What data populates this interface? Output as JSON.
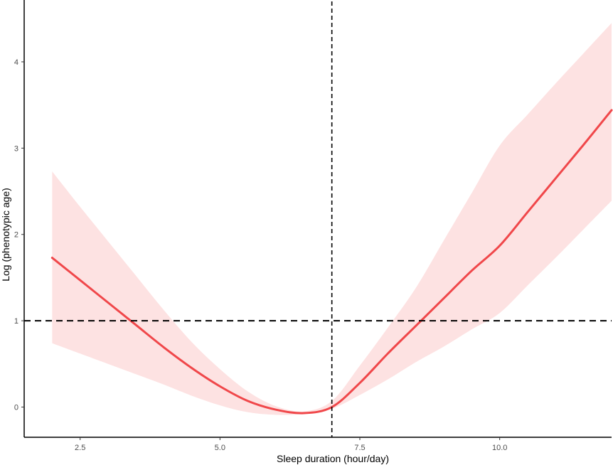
{
  "chart_data": {
    "type": "line",
    "title": "",
    "xlabel": "Sleep duration (hour/day)",
    "ylabel": "Log (phenotypic age)",
    "xlim": [
      1.5,
      12.0
    ],
    "ylim": [
      -0.35,
      4.7
    ],
    "x_ticks": [
      2.5,
      5.0,
      7.5,
      10.0
    ],
    "x_tick_labels": [
      "2.5",
      "5.0",
      "7.5",
      "10.0"
    ],
    "y_ticks": [
      0,
      1,
      2,
      3,
      4
    ],
    "y_tick_labels": [
      "0",
      "1",
      "2",
      "3",
      "4"
    ],
    "grid": false,
    "legend": "none",
    "series": [
      {
        "x": [
          2.0,
          2.5,
          3.0,
          3.5,
          4.0,
          4.5,
          5.0,
          5.5,
          6.0,
          6.5,
          7.0,
          7.5,
          8.0,
          8.5,
          9.0,
          9.5,
          10.0,
          10.5,
          11.0,
          11.5,
          12.0
        ],
        "y": [
          1.73,
          1.47,
          1.21,
          0.95,
          0.69,
          0.45,
          0.24,
          0.07,
          -0.03,
          -0.07,
          0.0,
          0.28,
          0.62,
          0.94,
          1.26,
          1.58,
          1.87,
          2.26,
          2.65,
          3.04,
          3.44
        ],
        "upper": [
          2.73,
          2.32,
          1.92,
          1.52,
          1.12,
          0.75,
          0.44,
          0.18,
          0.01,
          -0.05,
          0.07,
          0.48,
          0.92,
          1.38,
          1.93,
          2.48,
          3.03,
          3.39,
          3.75,
          4.1,
          4.45
        ],
        "lower": [
          0.74,
          0.62,
          0.5,
          0.38,
          0.26,
          0.13,
          0.02,
          -0.06,
          -0.09,
          -0.08,
          -0.02,
          0.14,
          0.32,
          0.52,
          0.7,
          0.9,
          1.09,
          1.41,
          1.73,
          2.06,
          2.39
        ]
      }
    ],
    "reference_lines": [
      {
        "orientation": "vertical",
        "value": 7.0
      },
      {
        "orientation": "horizontal",
        "value": 1.0
      }
    ],
    "colors": {
      "line": "#f0474a",
      "band": "#fde2e2",
      "reference": "#000000",
      "axis": "#000000"
    }
  }
}
